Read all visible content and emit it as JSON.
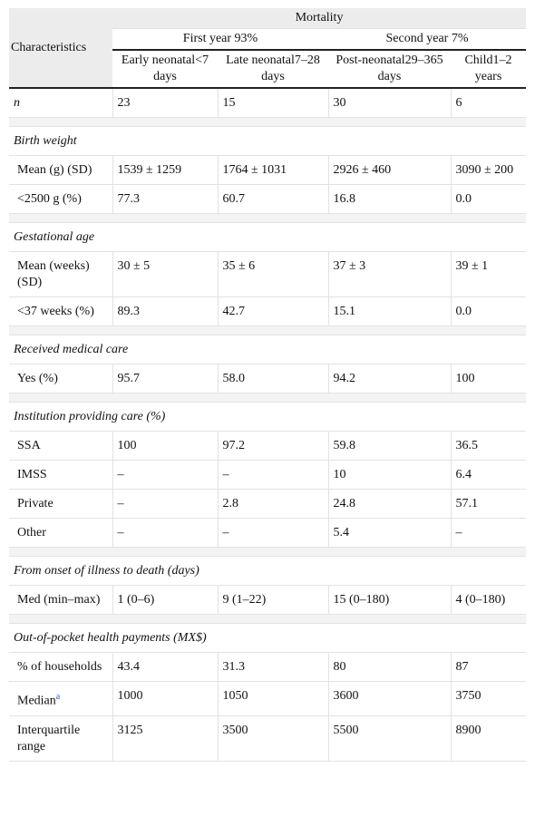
{
  "header": {
    "group": "Mortality",
    "row_label": "Characteristics",
    "periods": [
      {
        "label": "First year 93%",
        "columns": [
          "Early neonatal<7 days",
          "Late neonatal7–28 days"
        ]
      },
      {
        "label": "Second year 7%",
        "columns": [
          "Post-neonatal29–365 days",
          "Child1–2 years"
        ]
      }
    ]
  },
  "rows": [
    {
      "label": "n",
      "cells": [
        "23",
        "15",
        "30",
        "6"
      ]
    },
    {
      "section": "Birth weight"
    },
    {
      "label": "Mean (g) (SD)",
      "cells": [
        "1539 ± 1259",
        "1764 ± 1031",
        "2926 ± 460",
        "3090 ± 200"
      ]
    },
    {
      "label": "<2500 g (%)",
      "cells": [
        "77.3",
        "60.7",
        "16.8",
        "0.0"
      ]
    },
    {
      "section": "Gestational age"
    },
    {
      "label": "Mean (weeks) (SD)",
      "cells": [
        "30 ± 5",
        "35 ± 6",
        "37 ± 3",
        "39 ± 1"
      ]
    },
    {
      "label": "<37 weeks (%)",
      "cells": [
        "89.3",
        "42.7",
        "15.1",
        "0.0"
      ]
    },
    {
      "section": "Received medical care"
    },
    {
      "label": "Yes (%)",
      "cells": [
        "95.7",
        "58.0",
        "94.2",
        "100"
      ]
    },
    {
      "section": "Institution providing care (%)"
    },
    {
      "label": "SSA",
      "cells": [
        "100",
        "97.2",
        "59.8",
        "36.5"
      ]
    },
    {
      "label": "IMSS",
      "cells": [
        "–",
        "–",
        "10",
        "6.4"
      ]
    },
    {
      "label": "Private",
      "cells": [
        "–",
        "2.8",
        "24.8",
        "57.1"
      ]
    },
    {
      "label": "Other",
      "cells": [
        "–",
        "–",
        "5.4",
        "–"
      ]
    },
    {
      "section": "From onset of illness to death (days)"
    },
    {
      "label": "Med (min–max)",
      "cells": [
        "1 (0–6)",
        "9 (1–22)",
        "15 (0–180)",
        "4 (0–180)"
      ]
    },
    {
      "section": "Out-of-pocket health payments (MX$)"
    },
    {
      "label": "% of households",
      "cells": [
        "43.4",
        "31.3",
        "80",
        "87"
      ]
    },
    {
      "label": "Median",
      "note": "a",
      "cells": [
        "1000",
        "1050",
        "3600",
        "3750"
      ]
    },
    {
      "label": "Interquartile range",
      "cells": [
        "3125",
        "3500",
        "5500",
        "8900"
      ]
    }
  ]
}
